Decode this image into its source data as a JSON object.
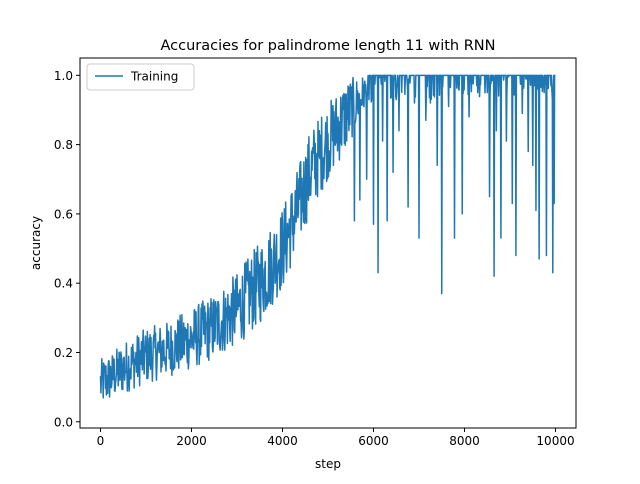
{
  "chart_data": {
    "type": "line",
    "title": "Accuracies for palindrome length 11 with RNN",
    "xlabel": "step",
    "ylabel": "accuracy",
    "xlim": [
      -450,
      10450
    ],
    "ylim": [
      -0.018,
      1.05
    ],
    "xticks": [
      0,
      2000,
      4000,
      6000,
      8000,
      10000
    ],
    "xtick_labels": [
      "0",
      "2000",
      "4000",
      "6000",
      "8000",
      "10000"
    ],
    "yticks": [
      0.0,
      0.2,
      0.4,
      0.6,
      0.8,
      1.0
    ],
    "ytick_labels": [
      "0.0",
      "0.2",
      "0.4",
      "0.6",
      "0.8",
      "1.0"
    ],
    "grid": false,
    "legend_position": "top-left",
    "series": [
      {
        "name": "Training",
        "color": "#1f77b4",
        "step_interval": 10,
        "x_range": [
          0,
          10000
        ],
        "band": {
          "x": [
            0,
            250,
            500,
            1000,
            1500,
            2000,
            2500,
            3000,
            3500,
            4000,
            4300,
            4600,
            5000,
            5400,
            5800,
            6000,
            10000
          ],
          "low": [
            0.04,
            0.06,
            0.08,
            0.11,
            0.13,
            0.15,
            0.18,
            0.22,
            0.28,
            0.38,
            0.48,
            0.6,
            0.7,
            0.78,
            0.9,
            0.93,
            0.93
          ],
          "high": [
            0.18,
            0.2,
            0.23,
            0.27,
            0.29,
            0.33,
            0.37,
            0.43,
            0.52,
            0.62,
            0.72,
            0.84,
            0.92,
            0.99,
            1.0,
            1.0,
            1.0
          ]
        },
        "dips": [
          {
            "x": 5580,
            "y": 0.58
          },
          {
            "x": 5700,
            "y": 0.64
          },
          {
            "x": 5850,
            "y": 0.7
          },
          {
            "x": 6000,
            "y": 0.57
          },
          {
            "x": 6100,
            "y": 0.43
          },
          {
            "x": 6200,
            "y": 0.81
          },
          {
            "x": 6300,
            "y": 0.58
          },
          {
            "x": 6430,
            "y": 0.72
          },
          {
            "x": 6500,
            "y": 0.93
          },
          {
            "x": 6560,
            "y": 0.84
          },
          {
            "x": 6760,
            "y": 0.62
          },
          {
            "x": 6900,
            "y": 0.92
          },
          {
            "x": 7000,
            "y": 0.53
          },
          {
            "x": 7150,
            "y": 0.87
          },
          {
            "x": 7250,
            "y": 0.92
          },
          {
            "x": 7400,
            "y": 0.74
          },
          {
            "x": 7500,
            "y": 0.37
          },
          {
            "x": 7650,
            "y": 0.91
          },
          {
            "x": 7780,
            "y": 0.53
          },
          {
            "x": 7950,
            "y": 0.6
          },
          {
            "x": 8100,
            "y": 0.88
          },
          {
            "x": 8500,
            "y": 0.95
          },
          {
            "x": 8550,
            "y": 0.65
          },
          {
            "x": 8650,
            "y": 0.42
          },
          {
            "x": 8700,
            "y": 0.84
          },
          {
            "x": 8800,
            "y": 0.53
          },
          {
            "x": 8920,
            "y": 0.81
          },
          {
            "x": 9050,
            "y": 0.63
          },
          {
            "x": 9130,
            "y": 0.48
          },
          {
            "x": 9270,
            "y": 0.89
          },
          {
            "x": 9400,
            "y": 0.78
          },
          {
            "x": 9500,
            "y": 0.74
          },
          {
            "x": 9570,
            "y": 0.61
          },
          {
            "x": 9640,
            "y": 0.47
          },
          {
            "x": 9750,
            "y": 0.95
          },
          {
            "x": 9800,
            "y": 0.48
          },
          {
            "x": 9900,
            "y": 0.97
          },
          {
            "x": 9940,
            "y": 0.43
          },
          {
            "x": 9970,
            "y": 0.63
          }
        ]
      }
    ]
  }
}
